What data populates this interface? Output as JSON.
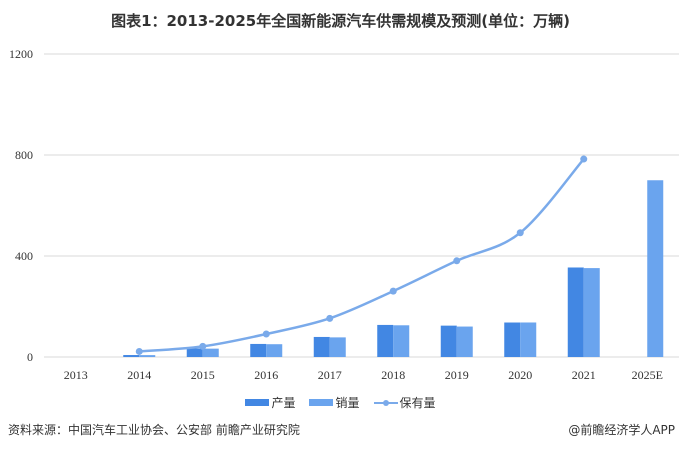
{
  "chart_data": {
    "type": "bar",
    "title": "图表1：2013-2025年全国新能源汽车供需规模及预测(单位：万辆)",
    "categories": [
      "2013",
      "2014",
      "2015",
      "2016",
      "2017",
      "2018",
      "2019",
      "2020",
      "2021",
      "2025E"
    ],
    "series": [
      {
        "name": "产量",
        "type": "bar",
        "color": "#4287e3",
        "values": [
          null,
          7.8,
          34,
          51.7,
          79.4,
          127,
          124.2,
          136.6,
          354.5,
          null
        ]
      },
      {
        "name": "销量",
        "type": "bar",
        "color": "#6aa4ee",
        "values": [
          null,
          7.5,
          33.1,
          50.7,
          77.7,
          125.6,
          120.6,
          136.7,
          352.1,
          700
        ]
      },
      {
        "name": "保有量",
        "type": "line",
        "color": "#7aaaea",
        "values": [
          null,
          22,
          42,
          91,
          153,
          261,
          381,
          492,
          784,
          null
        ]
      }
    ],
    "xlabel": "",
    "ylabel": "",
    "ylim": [
      0,
      1200
    ],
    "yticks": [
      "0",
      "400",
      "800",
      "1200"
    ],
    "grid": true,
    "legend": "bottom-center"
  },
  "footer": {
    "source": "资料来源：中国汽车工业协会、公安部 前瞻产业研究院",
    "credit": "@前瞻经济学人APP"
  }
}
